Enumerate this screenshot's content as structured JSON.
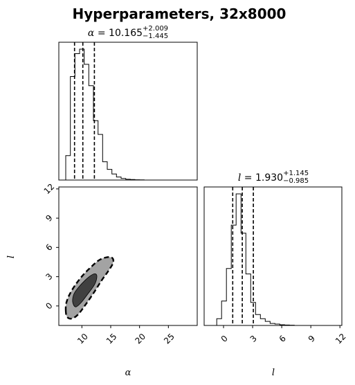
{
  "suptitle": "Hyperparameters, 32x8000",
  "chart_data": {
    "type": "corner",
    "parameters": [
      {
        "symbol": "α",
        "label": "α",
        "median": "10.165",
        "plus": "+2.009",
        "minus": "−1.445",
        "title_eq": " = ",
        "quantiles": [
          8.72,
          10.165,
          12.174
        ],
        "range": [
          6,
          30
        ],
        "ticks": [
          10,
          15,
          20,
          25
        ],
        "tick_labels": [
          "10",
          "15",
          "20",
          "25"
        ],
        "hist": {
          "bin_width": 0.8,
          "start": 6.4,
          "counts": [
            0,
            0.16,
            0.68,
            0.83,
            0.86,
            0.76,
            0.62,
            0.39,
            0.3,
            0.12,
            0.07,
            0.04,
            0.02,
            0.01,
            0.005,
            0.003,
            0.002,
            0.001,
            0,
            0,
            0,
            0,
            0,
            0,
            0,
            0,
            0,
            0,
            0,
            0
          ]
        }
      },
      {
        "symbol": "l",
        "label": "l",
        "median": "1.930",
        "plus": "+1.145",
        "minus": "−0.985",
        "title_eq": " = ",
        "quantiles": [
          0.945,
          1.93,
          3.075
        ],
        "range": [
          -2,
          12.2
        ],
        "ticks": [
          0,
          3,
          6,
          9,
          12
        ],
        "tick_labels": [
          "0",
          "3",
          "6",
          "9",
          "12"
        ],
        "hist": {
          "bin_width": 0.5,
          "start": -1.2,
          "counts": [
            0,
            0.05,
            0.18,
            0.42,
            0.74,
            0.97,
            0.68,
            0.38,
            0.17,
            0.08,
            0.05,
            0.03,
            0.015,
            0.01,
            0.005,
            0.003,
            0.002,
            0,
            0,
            0,
            0,
            0,
            0,
            0,
            0,
            0,
            0
          ]
        }
      }
    ],
    "contours_2d": {
      "x_param": "α",
      "y_param": "l",
      "levels": [
        {
          "name": "outer",
          "fill": "#a3a3a3",
          "dashed": true,
          "points": [
            [
              7.2,
              -0.4
            ],
            [
              7.4,
              -1.1
            ],
            [
              8.2,
              -1.3
            ],
            [
              9.3,
              -0.9
            ],
            [
              10.6,
              0.1
            ],
            [
              12.0,
              1.3
            ],
            [
              13.4,
              2.6
            ],
            [
              14.6,
              3.6
            ],
            [
              15.4,
              4.4
            ],
            [
              15.3,
              4.9
            ],
            [
              14.4,
              5.0
            ],
            [
              13.0,
              4.7
            ],
            [
              11.6,
              4.0
            ],
            [
              10.1,
              3.1
            ],
            [
              8.8,
              2.1
            ],
            [
              7.8,
              1.1
            ],
            [
              7.3,
              0.3
            ]
          ]
        },
        {
          "name": "inner",
          "fill": "#404040",
          "dashed": false,
          "points": [
            [
              8.4,
              0.4
            ],
            [
              8.9,
              -0.1
            ],
            [
              9.8,
              0.3
            ],
            [
              11.0,
              1.2
            ],
            [
              12.2,
              2.2
            ],
            [
              12.6,
              3.0
            ],
            [
              12.3,
              3.3
            ],
            [
              11.5,
              3.1
            ],
            [
              10.5,
              2.6
            ],
            [
              9.4,
              1.9
            ],
            [
              8.6,
              1.2
            ]
          ]
        }
      ]
    },
    "line_color": "#000000"
  }
}
